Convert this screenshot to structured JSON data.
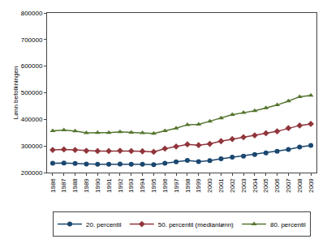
{
  "chart_data": {
    "type": "line",
    "y_label": "Lønn befolkningen",
    "x": [
      1986,
      1987,
      1988,
      1989,
      1990,
      1991,
      1992,
      1993,
      1994,
      1995,
      1996,
      1997,
      1998,
      1999,
      2000,
      2001,
      2002,
      2003,
      2004,
      2005,
      2006,
      2007,
      2008,
      2009
    ],
    "series": [
      {
        "name": "20. percentil",
        "color": "#1a476f",
        "marker": "circle",
        "values": [
          235000,
          236000,
          234000,
          232000,
          231000,
          231000,
          232000,
          231000,
          231000,
          230000,
          235000,
          240000,
          246000,
          241000,
          245000,
          252000,
          258000,
          262000,
          268000,
          274000,
          280000,
          287000,
          296000,
          302000
        ]
      },
      {
        "name": "50. percentil (medianlønn)",
        "color": "#90353b",
        "marker": "diamond",
        "values": [
          285000,
          287000,
          285000,
          282000,
          281000,
          281000,
          282000,
          281000,
          280000,
          278000,
          290000,
          298000,
          306000,
          303000,
          308000,
          318000,
          326000,
          333000,
          340000,
          348000,
          355000,
          367000,
          377000,
          383000
        ]
      },
      {
        "name": "80. percentil",
        "color": "#55752f",
        "marker": "triangle",
        "values": [
          357000,
          360000,
          356000,
          349000,
          350000,
          350000,
          353000,
          351000,
          349000,
          347000,
          357000,
          367000,
          380000,
          381000,
          393000,
          405000,
          418000,
          425000,
          432000,
          443000,
          454000,
          469000,
          485000,
          490000
        ]
      }
    ],
    "xlim": [
      1985.5,
      2009.5
    ],
    "xticks": [
      1986,
      1987,
      1988,
      1989,
      1990,
      1991,
      1992,
      1993,
      1994,
      1995,
      1996,
      1997,
      1998,
      1999,
      2000,
      2001,
      2002,
      2003,
      2004,
      2005,
      2006,
      2007,
      2008,
      2009
    ],
    "ylim": [
      200000,
      800000
    ],
    "yticks": [
      200000,
      300000,
      400000,
      500000,
      600000,
      700000,
      800000
    ],
    "grid": false,
    "legend": "bottom"
  }
}
